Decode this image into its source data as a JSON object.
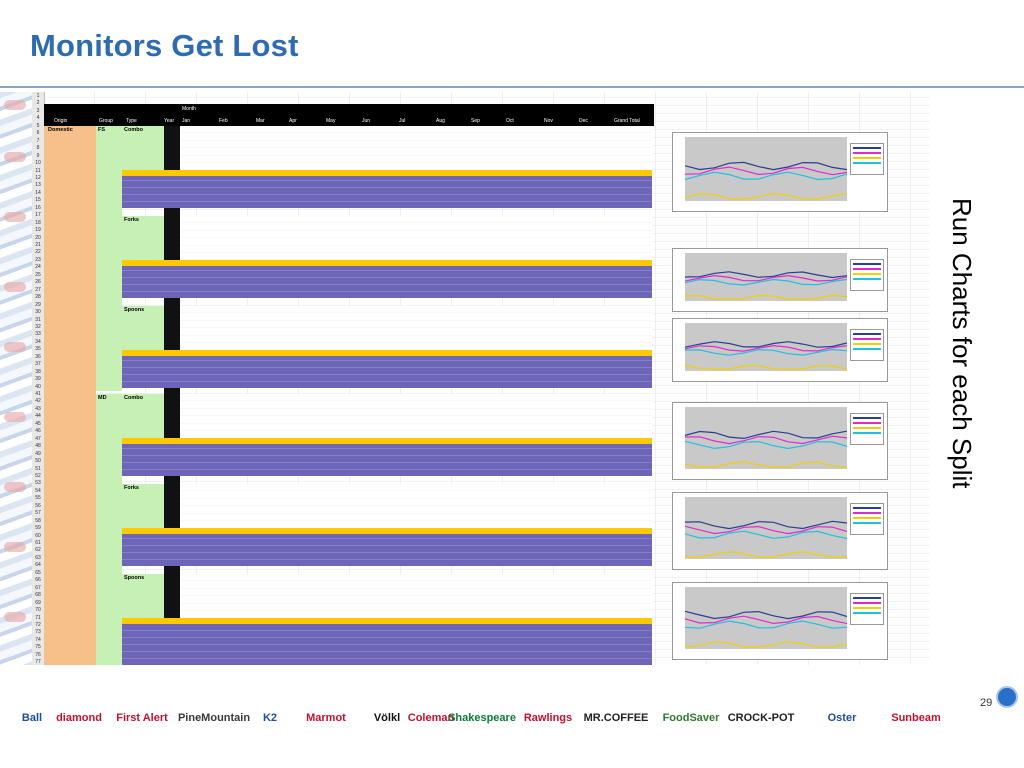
{
  "slide": {
    "title": "Monitors Get Lost",
    "side_caption": "Run Charts for each Split",
    "page_number": "29"
  },
  "sheet": {
    "header_month": "Month",
    "columns": [
      "Origin",
      "Group",
      "Type",
      "Year",
      "Jan",
      "Feb",
      "Mar",
      "Apr",
      "May",
      "Jun",
      "Jul",
      "Aug",
      "Sep",
      "Oct",
      "Nov",
      "Dec",
      "Grand Total"
    ],
    "origin": "Domestic",
    "groups": [
      "FS",
      "MD"
    ],
    "types": [
      "Combo",
      "Forks",
      "Spoons",
      "Combo",
      "Forks",
      "Spoons"
    ],
    "row_numbers": [
      "1",
      "2",
      "3",
      "4",
      "5",
      "6",
      "7",
      "8",
      "9",
      "10",
      "11",
      "12",
      "13",
      "14",
      "15",
      "16",
      "17",
      "18",
      "19",
      "20",
      "21",
      "22",
      "23",
      "24",
      "25",
      "26",
      "27",
      "28",
      "29",
      "30",
      "31",
      "32",
      "33",
      "34",
      "35",
      "36",
      "37",
      "38",
      "39",
      "40",
      "41",
      "42",
      "43",
      "44",
      "45",
      "46",
      "47",
      "48",
      "49",
      "50",
      "51",
      "52",
      "53",
      "54",
      "55",
      "56",
      "57",
      "58",
      "59",
      "60",
      "61",
      "62",
      "63",
      "64",
      "65",
      "66",
      "67",
      "68",
      "69",
      "70",
      "71",
      "72",
      "73",
      "74",
      "75",
      "76",
      "77"
    ]
  },
  "brands": [
    {
      "name": "Ball",
      "color": "#1f4e99"
    },
    {
      "name": "diamond",
      "color": "#c8102e"
    },
    {
      "name": "First Alert",
      "color": "#c8102e"
    },
    {
      "name": "PineMountain",
      "color": "#3a3a3a"
    },
    {
      "name": "K2",
      "color": "#1f4e99"
    },
    {
      "name": "Marmot",
      "color": "#c8102e"
    },
    {
      "name": "Völkl",
      "color": "#111111"
    },
    {
      "name": "Coleman",
      "color": "#c8102e"
    },
    {
      "name": "Shakespeare",
      "color": "#0f7a3a"
    },
    {
      "name": "Rawlings",
      "color": "#c8102e"
    },
    {
      "name": "MR.COFFEE",
      "color": "#222222"
    },
    {
      "name": "FoodSaver",
      "color": "#2f7a2f"
    },
    {
      "name": "CROCK-POT",
      "color": "#222222"
    },
    {
      "name": "Oster",
      "color": "#1f4e99"
    },
    {
      "name": "Sunbeam",
      "color": "#c8102e"
    }
  ],
  "colors": {
    "title": "#2e6bb0",
    "orange": "#f7c08a",
    "green": "#c6f0b4",
    "purple": "#6d66b8",
    "yellow": "#ffc800"
  }
}
